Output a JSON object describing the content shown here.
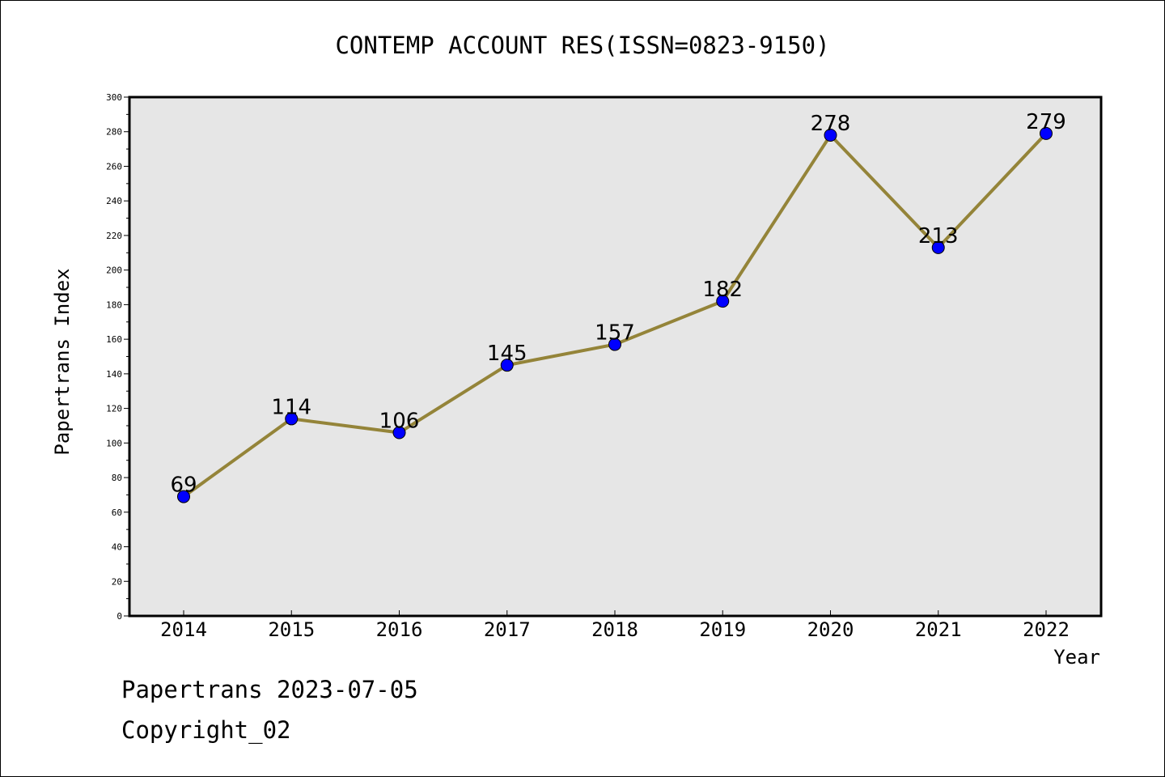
{
  "chart_data": {
    "type": "line",
    "title": "CONTEMP ACCOUNT RES(ISSN=0823-9150)",
    "xlabel": "Year",
    "ylabel": "Papertrans Index",
    "categories": [
      "2014",
      "2015",
      "2016",
      "2017",
      "2018",
      "2019",
      "2020",
      "2021",
      "2022"
    ],
    "values": [
      69,
      114,
      106,
      145,
      157,
      182,
      278,
      213,
      279
    ],
    "ylim": [
      0,
      300
    ],
    "y_ticks": [
      0,
      20,
      40,
      60,
      80,
      100,
      120,
      140,
      160,
      180,
      200,
      220,
      240,
      260,
      280,
      300
    ],
    "grid": false,
    "plot_background": "#e6e6e6",
    "line_color": "#948439",
    "marker_color": "#0000ff",
    "data_labels": true
  },
  "footer": {
    "line1": "Papertrans 2023-07-05",
    "line2": "Copyright_02"
  }
}
